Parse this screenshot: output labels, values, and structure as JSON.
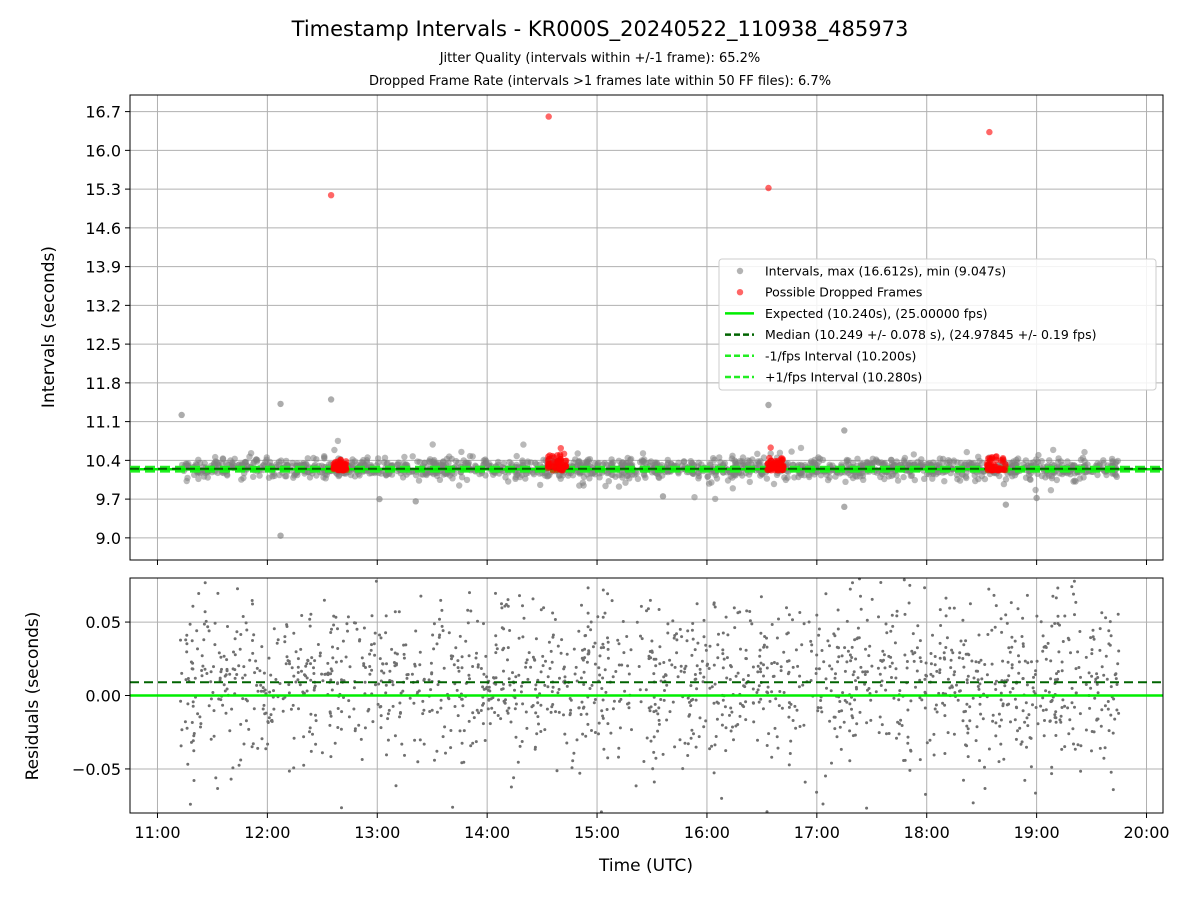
{
  "figure": {
    "title": "Timestamp Intervals - KR000S_20240522_110938_485973",
    "subtitle_lines": [
      "Jitter Quality (intervals within +/-1 frame): 65.2%",
      "Dropped Frame Rate (intervals >1 frames late within 50 FF files): 6.7%"
    ]
  },
  "colors": {
    "intervals": "#808080",
    "dropped": "#ff0000",
    "expected": "#00ee00",
    "median": "#006400",
    "fps_band": "#22ee22",
    "grid": "#b0b0b0"
  },
  "chart_data": [
    {
      "type": "scatter",
      "name": "intervals-panel",
      "xlabel": "",
      "ylabel": "Intervals (seconds)",
      "xlim": [
        10.75,
        20.15
      ],
      "ylim": [
        8.6,
        17.0
      ],
      "yticks": [
        9.0,
        9.7,
        10.4,
        11.1,
        11.8,
        12.5,
        13.2,
        13.9,
        14.6,
        15.3,
        16.0,
        16.7
      ],
      "ytick_labels": [
        "9.0",
        "9.7",
        "10.4",
        "11.1",
        "11.8",
        "12.5",
        "13.2",
        "13.9",
        "14.6",
        "15.3",
        "16.0",
        "16.7"
      ],
      "grid": true,
      "legend_position": "center-right",
      "legend": [
        {
          "label": "Intervals, max (16.612s), min (9.047s)",
          "kind": "dot",
          "color": "#808080"
        },
        {
          "label": "Possible Dropped Frames",
          "kind": "dot",
          "color": "#ff0000"
        },
        {
          "label": "Expected (10.240s), (25.00000 fps)",
          "kind": "solid",
          "color": "#00ee00"
        },
        {
          "label": "Median (10.249 +/- 0.078 s), (24.97845 +/- 0.19 fps)",
          "kind": "dashed",
          "color": "#006400"
        },
        {
          "label": "-1/fps Interval (10.200s)",
          "kind": "dashed",
          "color": "#22ee22"
        },
        {
          "label": "+1/fps Interval (10.280s)",
          "kind": "dashed",
          "color": "#22ee22"
        }
      ],
      "lines": {
        "expected": 10.24,
        "median": 10.249,
        "minus_fps": 10.2,
        "plus_fps": 10.28
      },
      "series": [
        {
          "name": "Intervals, max (16.612s), min (9.047s)",
          "range": [
            11.2,
            19.75
          ],
          "center": 10.26,
          "spread": 0.09,
          "count": 1600,
          "outliers": [
            {
              "x": 11.22,
              "y": 11.22
            },
            {
              "x": 12.12,
              "y": 11.42
            },
            {
              "x": 12.58,
              "y": 11.5
            },
            {
              "x": 16.56,
              "y": 11.4
            },
            {
              "x": 17.25,
              "y": 10.94
            },
            {
              "x": 12.12,
              "y": 9.04
            },
            {
              "x": 17.25,
              "y": 9.56
            },
            {
              "x": 13.35,
              "y": 9.66
            },
            {
              "x": 13.02,
              "y": 9.7
            },
            {
              "x": 15.6,
              "y": 9.75
            },
            {
              "x": 18.72,
              "y": 9.6
            },
            {
              "x": 19.0,
              "y": 9.72
            }
          ]
        },
        {
          "name": "Possible Dropped Frames",
          "clusters": [
            {
              "x": [
                12.6,
                12.72
              ],
              "y": [
                10.22,
                10.42
              ]
            },
            {
              "x": [
                14.55,
                14.72
              ],
              "y": [
                10.22,
                10.52
              ]
            },
            {
              "x": [
                16.55,
                16.7
              ],
              "y": [
                10.22,
                10.45
              ]
            },
            {
              "x": [
                18.55,
                18.72
              ],
              "y": [
                10.22,
                10.48
              ]
            }
          ],
          "points": [
            {
              "x": 12.58,
              "y": 15.19
            },
            {
              "x": 14.56,
              "y": 16.61
            },
            {
              "x": 16.56,
              "y": 15.32
            },
            {
              "x": 18.57,
              "y": 16.33
            },
            {
              "x": 14.67,
              "y": 10.62
            },
            {
              "x": 16.58,
              "y": 10.63
            }
          ]
        }
      ]
    },
    {
      "type": "scatter",
      "name": "residuals-panel",
      "xlabel": "Time (UTC)",
      "ylabel": "Residuals (seconds)",
      "xlim": [
        10.75,
        20.15
      ],
      "ylim": [
        -0.08,
        0.08
      ],
      "xticks": [
        11,
        12,
        13,
        14,
        15,
        16,
        17,
        18,
        19,
        20
      ],
      "xtick_labels": [
        "11:00",
        "12:00",
        "13:00",
        "14:00",
        "15:00",
        "16:00",
        "17:00",
        "18:00",
        "19:00",
        "20:00"
      ],
      "yticks": [
        -0.05,
        0.0,
        0.05
      ],
      "ytick_labels": [
        "−0.05",
        "0.00",
        "0.05"
      ],
      "grid": true,
      "lines": {
        "zero": 0.0,
        "median_offset": 0.009
      },
      "series": [
        {
          "name": "Residuals",
          "range": [
            11.2,
            19.75
          ],
          "center": 0.01,
          "spread": 0.028,
          "count": 1700
        }
      ]
    }
  ]
}
